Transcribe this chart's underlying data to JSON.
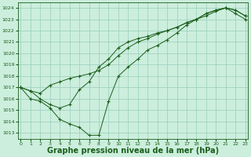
{
  "bg_color": "#cceedd",
  "grid_color": "#99ccbb",
  "line_color": "#1a5e1a",
  "marker_color": "#1a5e1a",
  "xlabel": "Graphe pression niveau de la mer (hPa)",
  "xlabel_fontsize": 7,
  "ylim": [
    1012.5,
    1024.5
  ],
  "xlim": [
    -0.3,
    23.3
  ],
  "yticks": [
    1013,
    1014,
    1015,
    1016,
    1017,
    1018,
    1019,
    1020,
    1021,
    1022,
    1023,
    1024
  ],
  "xticks": [
    0,
    1,
    2,
    3,
    4,
    5,
    6,
    7,
    8,
    9,
    10,
    11,
    12,
    13,
    14,
    15,
    16,
    17,
    18,
    19,
    20,
    21,
    22,
    23
  ],
  "series": [
    {
      "x": [
        0,
        1,
        2,
        3,
        4,
        5,
        6,
        7,
        8,
        9,
        10,
        11,
        12,
        13,
        14,
        15,
        16,
        17,
        18,
        19,
        20,
        21,
        22,
        23
      ],
      "y": [
        1017.0,
        1016.7,
        1016.5,
        1017.2,
        1017.5,
        1017.8,
        1018.0,
        1018.2,
        1018.5,
        1019.0,
        1019.8,
        1020.5,
        1021.0,
        1021.3,
        1021.7,
        1022.0,
        1022.3,
        1022.7,
        1023.0,
        1023.5,
        1023.8,
        1024.0,
        1023.8,
        1023.3
      ],
      "marker": "+"
    },
    {
      "x": [
        0,
        1,
        2,
        3,
        4,
        5,
        6,
        7,
        8,
        9,
        10,
        11,
        12,
        13,
        14,
        15,
        16,
        17,
        18,
        19,
        20,
        21,
        22,
        23
      ],
      "y": [
        1017.0,
        1016.7,
        1016.0,
        1015.5,
        1015.2,
        1015.5,
        1016.8,
        1017.5,
        1018.8,
        1019.5,
        1020.5,
        1021.0,
        1021.3,
        1021.5,
        1021.8,
        1022.0,
        1022.3,
        1022.7,
        1023.0,
        1023.3,
        1023.7,
        1024.0,
        1023.8,
        1023.3
      ],
      "marker": "+"
    },
    {
      "x": [
        0,
        1,
        2,
        3,
        4,
        5,
        6,
        7,
        8,
        9,
        10,
        11,
        12,
        13,
        14,
        15,
        16,
        17,
        18,
        19,
        20,
        21,
        22,
        23
      ],
      "y": [
        1017.0,
        1016.0,
        1015.8,
        1015.2,
        1014.2,
        1013.8,
        1013.5,
        1012.8,
        1012.8,
        1015.8,
        1018.0,
        1018.8,
        1019.5,
        1020.3,
        1020.7,
        1021.2,
        1021.8,
        1022.5,
        1023.0,
        1023.5,
        1023.8,
        1024.0,
        1023.5,
        1023.0
      ],
      "marker": "+"
    }
  ]
}
